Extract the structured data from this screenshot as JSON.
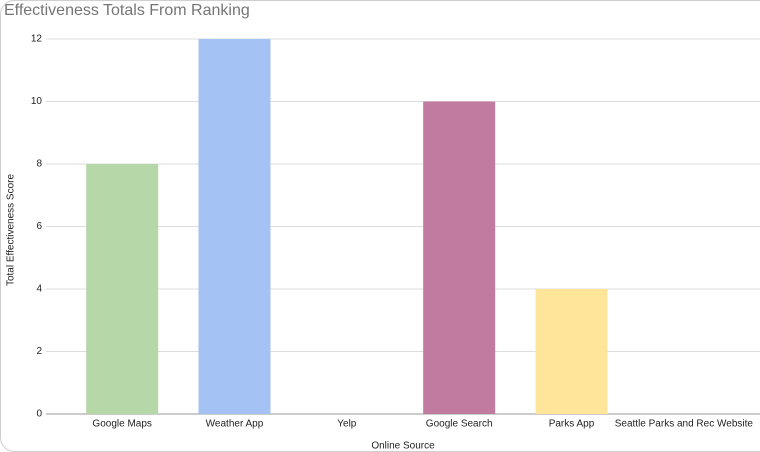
{
  "chart_data": {
    "type": "bar",
    "title": "Effectiveness Totals From Ranking",
    "x_label": "Online Source",
    "y_label": "Total Effectiveness Score",
    "categories": [
      "Google Maps",
      "Weather App",
      "Yelp",
      "Google Search",
      "Parks App",
      "Seattle Parks and Rec Website"
    ],
    "values": [
      8,
      12,
      0,
      10,
      4,
      0
    ],
    "colors": [
      "#b6d7a8",
      "#a4c2f4",
      null,
      "#c27ba0",
      "#ffe599",
      null
    ],
    "ylim": [
      0,
      12
    ],
    "yticks": [
      0,
      2,
      4,
      6,
      8,
      10,
      12
    ],
    "grid": true
  }
}
